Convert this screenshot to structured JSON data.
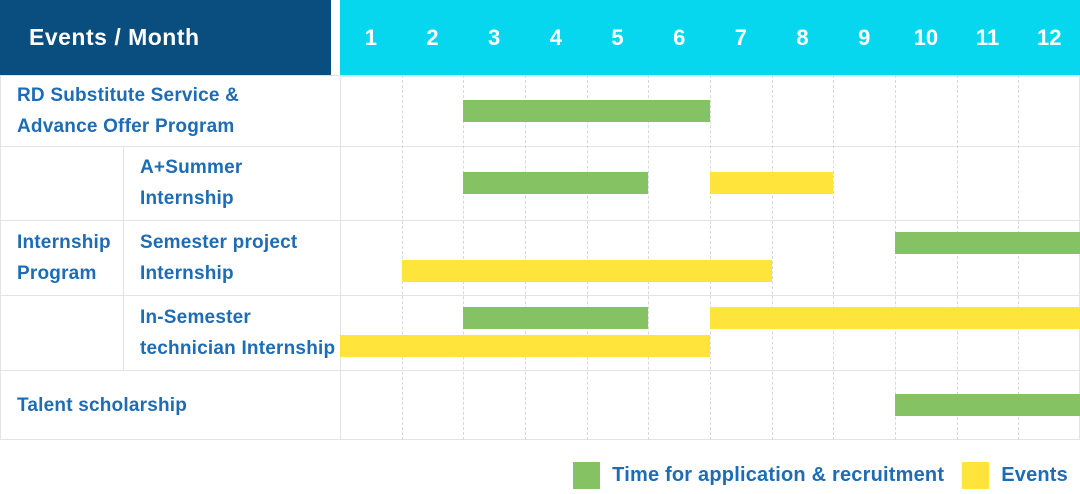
{
  "header": {
    "title": "Events / Month"
  },
  "legend": {
    "green_label": "Time for application & recruitment",
    "yellow_label": "Events"
  },
  "colors": {
    "navy_header": "#0a4d7f",
    "cyan_header": "#06d7ef",
    "green_bar": "#85c263",
    "yellow_bar": "#ffe43c",
    "label_text_blue": "#1d6cb5"
  },
  "chart_data": {
    "type": "table",
    "subtype": "gantt-timeline",
    "title": "Events / Month",
    "x_axis": {
      "unit": "month",
      "ticks": [
        "1",
        "2",
        "3",
        "4",
        "5",
        "6",
        "7",
        "8",
        "9",
        "10",
        "11",
        "12"
      ],
      "range": [
        1,
        12
      ]
    },
    "group": {
      "label": "Internship\nProgram",
      "spans_row_indexes": [
        1,
        2,
        3
      ]
    },
    "legend": [
      {
        "color_key": "green",
        "label": "Time for application & recruitment"
      },
      {
        "color_key": "yellow",
        "label": "Events"
      }
    ],
    "rows": [
      {
        "label": "RD Substitute Service &\nAdvance Offer Program",
        "bars": [
          {
            "series": "Time for application & recruitment",
            "color": "green",
            "start_month": 3,
            "end_month": 6,
            "lane": "center"
          }
        ]
      },
      {
        "label": "A+Summer\nInternship",
        "bars": [
          {
            "series": "Time for application & recruitment",
            "color": "green",
            "start_month": 3,
            "end_month": 5,
            "lane": "center"
          },
          {
            "series": "Events",
            "color": "yellow",
            "start_month": 7,
            "end_month": 8,
            "lane": "center"
          }
        ]
      },
      {
        "label": "Semester project\nInternship",
        "bars": [
          {
            "series": "Time for application & recruitment",
            "color": "green",
            "start_month": 10,
            "end_month": 12,
            "lane": "top"
          },
          {
            "series": "Events",
            "color": "yellow",
            "start_month": 2,
            "end_month": 7,
            "lane": "bottom"
          }
        ]
      },
      {
        "label": "In-Semester\ntechnician Internship",
        "bars": [
          {
            "series": "Time for application & recruitment",
            "color": "green",
            "start_month": 3,
            "end_month": 5,
            "lane": "top"
          },
          {
            "series": "Events",
            "color": "yellow",
            "start_month": 7,
            "end_month": 12,
            "lane": "top"
          },
          {
            "series": "Events",
            "color": "yellow",
            "start_month": 1,
            "end_month": 6,
            "lane": "bottom"
          }
        ]
      },
      {
        "label": "Talent scholarship",
        "bars": [
          {
            "series": "Time for application & recruitment",
            "color": "green",
            "start_month": 10,
            "end_month": 12,
            "lane": "center"
          }
        ]
      }
    ]
  }
}
